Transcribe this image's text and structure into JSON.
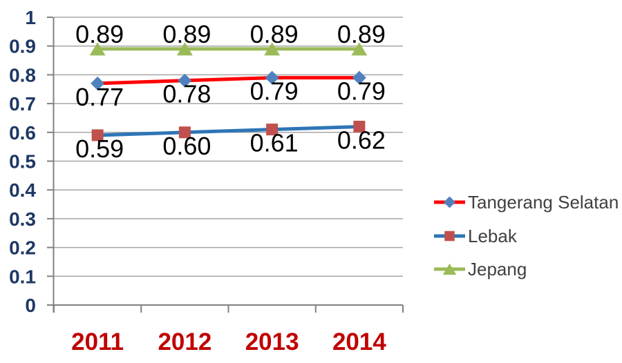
{
  "chart_data": {
    "type": "line",
    "title": "",
    "categories": [
      "2011",
      "2012",
      "2013",
      "2014"
    ],
    "series": [
      {
        "name": "Tangerang Selatan",
        "values": [
          0.77,
          0.78,
          0.79,
          0.79
        ],
        "labels": [
          "0.77",
          "0.78",
          "0.79",
          "0.79"
        ],
        "line_color": "#FF0000",
        "marker": "diamond",
        "marker_color": "#4F81BD",
        "label_position": "below"
      },
      {
        "name": "Lebak",
        "values": [
          0.59,
          0.6,
          0.61,
          0.62
        ],
        "labels": [
          "0.59",
          "0.60",
          "0.61",
          "0.62"
        ],
        "line_color": "#2E75B6",
        "marker": "square",
        "marker_color": "#C0504D",
        "label_position": "below"
      },
      {
        "name": "Jepang",
        "values": [
          0.89,
          0.89,
          0.89,
          0.89
        ],
        "labels": [
          "0.89",
          "0.89",
          "0.89",
          "0.89"
        ],
        "line_color": "#9BBB59",
        "marker": "triangle",
        "marker_color": "#9BBB59",
        "label_position": "above"
      }
    ],
    "ylim": [
      0,
      1
    ],
    "ytick_step": 0.1,
    "ytick_labels": [
      "0",
      "0.1",
      "0.2",
      "0.3",
      "0.4",
      "0.5",
      "0.6",
      "0.7",
      "0.8",
      "0.9",
      "1"
    ],
    "grid": true,
    "legend_position": "right",
    "legend_entries": [
      "Tangerang Selatan",
      "Lebak",
      "Jepang"
    ]
  },
  "styles": {
    "background": "#FFFFFF",
    "gridline_color": "#A6A6A6",
    "axis_color": "#808080",
    "ytick_label_color": "#1F3864",
    "xtick_label_color": "#C00000",
    "data_label_color": "#000000",
    "legend_text_color": "#404040"
  }
}
